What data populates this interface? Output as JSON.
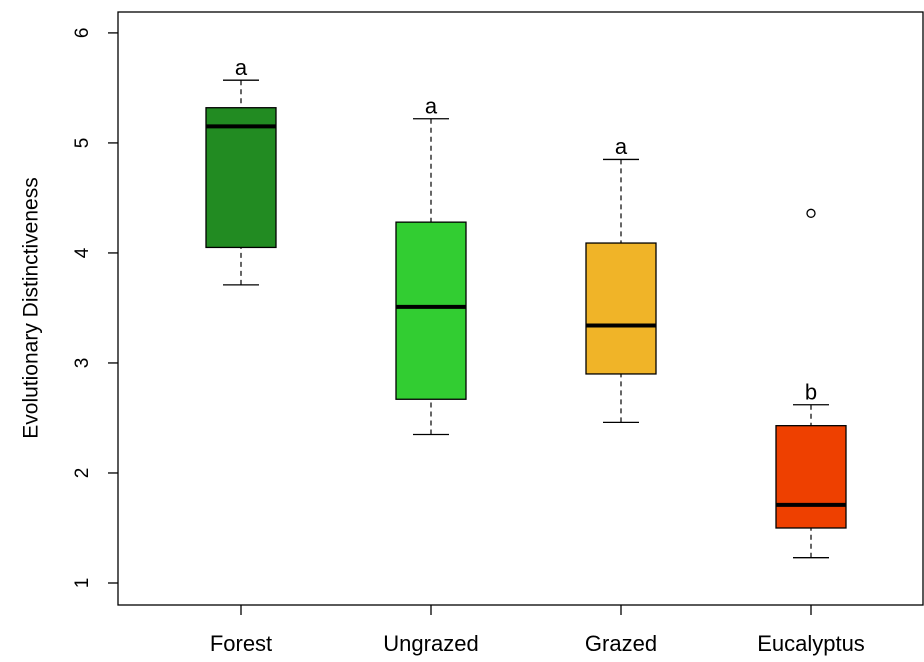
{
  "chart_data": {
    "type": "box",
    "y_label": "Evolutionary Distinctiveness",
    "categories": [
      "Forest",
      "Ungrazed",
      "Grazed",
      "Eucalyptus"
    ],
    "colors": [
      "#228b22",
      "#32cd32",
      "#f0b428",
      "#ee4000"
    ],
    "boxes": [
      {
        "min": 3.71,
        "q1": 4.05,
        "median": 5.15,
        "q3": 5.32,
        "max": 5.57,
        "outliers": []
      },
      {
        "min": 2.35,
        "q1": 2.67,
        "median": 3.51,
        "q3": 4.28,
        "max": 5.22,
        "outliers": []
      },
      {
        "min": 2.46,
        "q1": 2.9,
        "median": 3.34,
        "q3": 4.09,
        "max": 4.85,
        "outliers": []
      },
      {
        "min": 1.23,
        "q1": 1.5,
        "median": 1.71,
        "q3": 2.43,
        "max": 2.62,
        "outliers": [
          4.36
        ]
      }
    ],
    "annotations": [
      "a",
      "a",
      "a",
      "b"
    ],
    "ylim": [
      0.8,
      6.19
    ],
    "yticks": [
      1,
      2,
      3,
      4,
      5,
      6
    ]
  }
}
